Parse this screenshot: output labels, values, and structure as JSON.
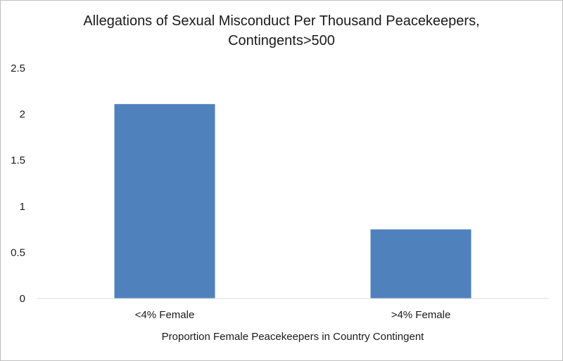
{
  "chart_data": {
    "type": "bar",
    "title": "Allegations of Sexual Misconduct Per Thousand Peacekeepers,\nContingents>500",
    "categories": [
      "<4% Female",
      ">4% Female"
    ],
    "values": [
      2.11,
      0.75
    ],
    "xlabel": "Proportion Female Peacekeepers in Country Contingent",
    "ylabel": "",
    "ylim": [
      0,
      2.5
    ],
    "yticks": [
      "0",
      "0.5",
      "1",
      "1.5",
      "2",
      "2.5"
    ],
    "grid": false,
    "legend": "none",
    "bar_color": "#4f81bd"
  }
}
